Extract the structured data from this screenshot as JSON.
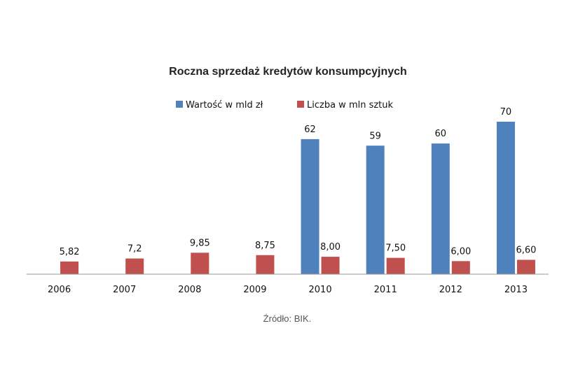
{
  "chart_data": {
    "type": "bar",
    "title": "Roczna sprzedaż kredytów konsumpcyjnych",
    "categories": [
      "2006",
      "2007",
      "2008",
      "2009",
      "2010",
      "2011",
      "2012",
      "2013"
    ],
    "series": [
      {
        "name": "Wartość w mld zł",
        "color": "#4f81bd",
        "values": [
          null,
          null,
          null,
          null,
          62,
          59,
          60,
          70
        ],
        "labels": [
          "",
          "",
          "",
          "",
          "62",
          "59",
          "60",
          "70"
        ]
      },
      {
        "name": "Liczba w mln sztuk",
        "color": "#c0504d",
        "values": [
          5.82,
          7.2,
          9.85,
          8.75,
          8.0,
          7.5,
          6.0,
          6.6
        ],
        "labels": [
          "5,82",
          "7,2",
          "9,85",
          "8,75",
          "8,00",
          "7,50",
          "6,00",
          "6,60"
        ]
      }
    ],
    "ylim": [
      0,
      70
    ],
    "grid": false,
    "legend": "top-center",
    "source": "Źródło: BIK."
  }
}
